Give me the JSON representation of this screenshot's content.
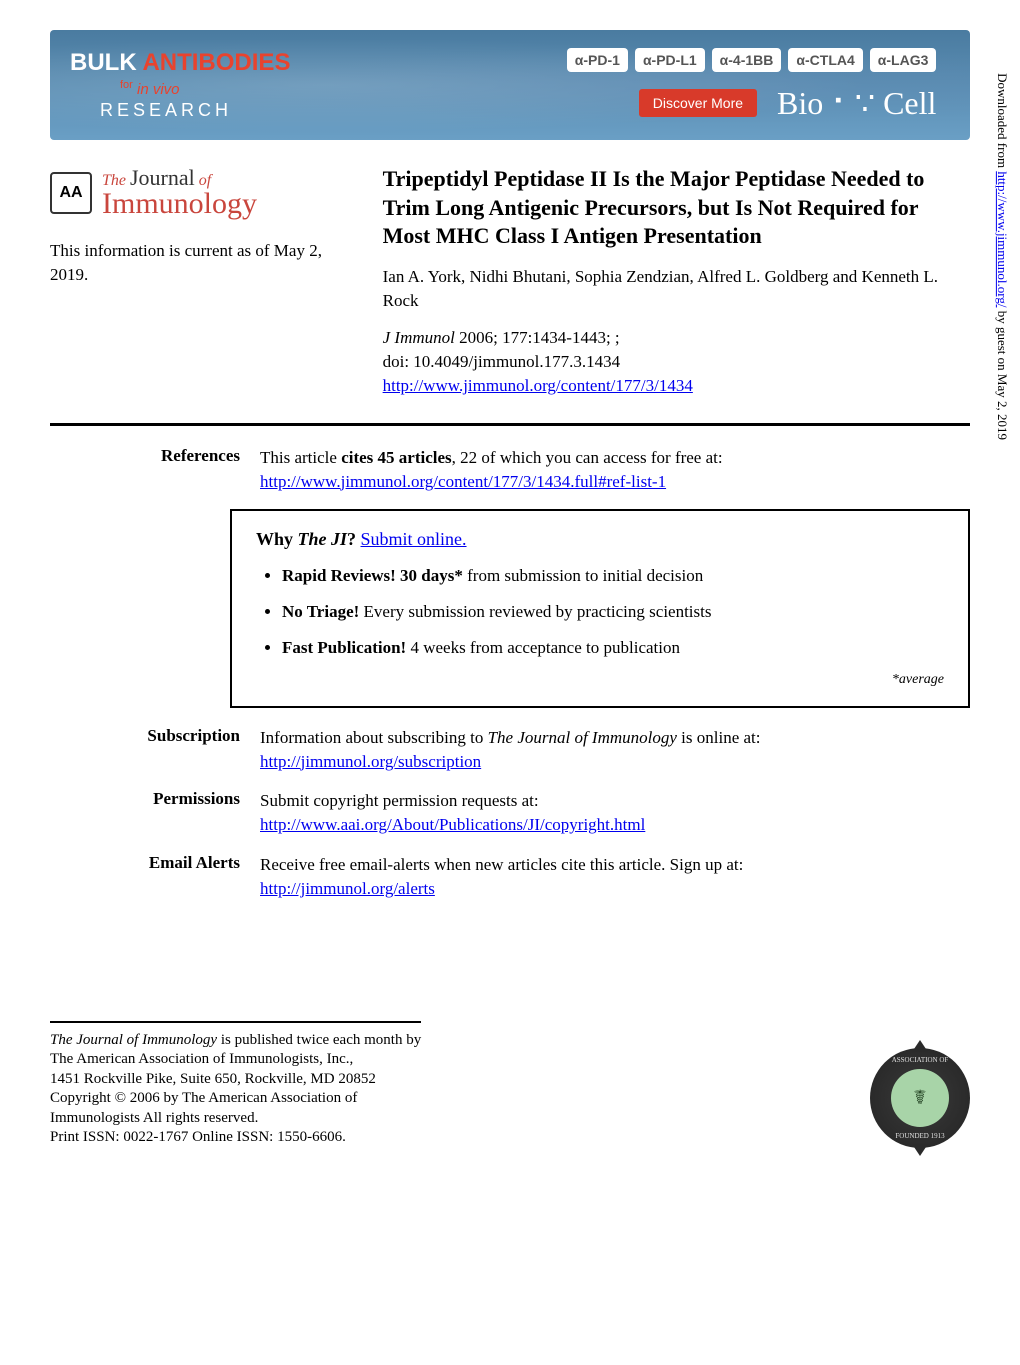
{
  "ad": {
    "title_part1": "BULK ",
    "title_part2": "ANTIBODIES",
    "for_text": "for",
    "invivo": " in vivo",
    "research": "RESEARCH",
    "pills": [
      "α-PD-1",
      "α-PD-L1",
      "α-4-1BB",
      "α-CTLA4",
      "α-LAG3"
    ],
    "discover": "Discover More",
    "biocell": "Bio ⠂∵ Cell",
    "colors": {
      "bg_gradient_top": "#4a7ba0",
      "bg_gradient_bottom": "#6a9fc5",
      "antibodies": "#e8432e",
      "discover_bg": "#d83a2a",
      "pill_bg": "#ffffff",
      "pill_text": "#555555"
    }
  },
  "journal": {
    "logo_text": "AA",
    "the": "The",
    "journal": "Journal",
    "of": "of",
    "immunology": "Immunology"
  },
  "currency": "This information is current as of May 2, 2019.",
  "article": {
    "title": "Tripeptidyl Peptidase II Is the Major Peptidase Needed to Trim Long Antigenic Precursors, but Is Not Required for Most MHC Class I Antigen Presentation",
    "authors": "Ian A. York, Nidhi Bhutani, Sophia Zendzian, Alfred L. Goldberg and Kenneth L. Rock",
    "citation_journal": "J Immunol",
    "citation_detail": " 2006; 177:1434-1443; ;",
    "doi": "doi: 10.4049/jimmunol.177.3.1434",
    "url": "http://www.jimmunol.org/content/177/3/1434"
  },
  "references": {
    "label": "References",
    "text_1": "This article ",
    "text_bold": "cites 45 articles",
    "text_2": ", 22 of which you can access for free at:",
    "url": "http://www.jimmunol.org/content/177/3/1434.full#ref-list-1"
  },
  "why_box": {
    "prefix": "Why ",
    "ji": "The JI",
    "q": "? ",
    "submit": "Submit online.",
    "items": [
      {
        "bold": "Rapid Reviews! 30 days*",
        "rest": " from submission to initial decision"
      },
      {
        "bold": "No Triage!",
        "rest": " Every submission reviewed by practicing scientists"
      },
      {
        "bold": "Fast Publication!",
        "rest": " 4 weeks from acceptance to publication"
      }
    ],
    "footnote": "*average"
  },
  "subscription": {
    "label": "Subscription",
    "text_1": "Information about subscribing to ",
    "ital": "The Journal of Immunology",
    "text_2": " is online at:",
    "url": "http://jimmunol.org/subscription"
  },
  "permissions": {
    "label": "Permissions",
    "text": "Submit copyright permission requests at:",
    "url": "http://www.aai.org/About/Publications/JI/copyright.html"
  },
  "alerts": {
    "label": "Email Alerts",
    "text": "Receive free email-alerts when new articles cite this article. Sign up at:",
    "url": "http://jimmunol.org/alerts"
  },
  "footer": {
    "line1_ital": "The Journal of Immunology",
    "line1_rest": " is published twice each month by",
    "line2": "The American Association of Immunologists, Inc.,",
    "line3": "1451 Rockville Pike, Suite 650, Rockville, MD 20852",
    "line4": "Copyright © 2006 by The American Association of",
    "line5": "Immunologists All rights reserved.",
    "line6": "Print ISSN: 0022-1767 Online ISSN: 1550-6606.",
    "seal_top": "ASSOCIATION OF",
    "seal_bottom": "FOUNDED 1913",
    "seal_icon": "☤"
  },
  "sidebar": {
    "prefix": "Downloaded from ",
    "url": "http://www.jimmunol.org/",
    "suffix": " by guest on May 2, 2019"
  }
}
